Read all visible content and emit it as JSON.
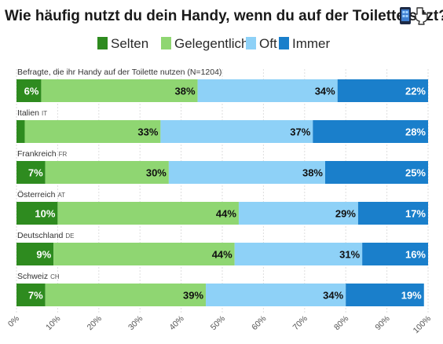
{
  "chart_data": {
    "type": "bar",
    "orientation": "horizontal",
    "stacked": true,
    "title": "Wie häufig nutzt du dein Handy, wenn du auf der Toilette sitzt?",
    "title_icons": [
      "smartphone-icon",
      "toilet-icon"
    ],
    "xlim": [
      0,
      100
    ],
    "x_ticks": [
      "0%",
      "10%",
      "20%",
      "30%",
      "40%",
      "50%",
      "60%",
      "70%",
      "80%",
      "90%",
      "100%"
    ],
    "grid": true,
    "legend": "top",
    "categories": [
      {
        "label": "Befragte, die ihr Handy auf der Toilette nutzen (N=1204)",
        "code": ""
      },
      {
        "label": "Italien",
        "code": "IT"
      },
      {
        "label": "Frankreich",
        "code": "FR"
      },
      {
        "label": "Österreich",
        "code": "AT"
      },
      {
        "label": "Deutschland",
        "code": "DE"
      },
      {
        "label": "Schweiz",
        "code": "CH"
      }
    ],
    "series": [
      {
        "name": "Selten",
        "color": "#2e8b1f",
        "text_color": "#ffffff",
        "values": [
          6,
          2,
          7,
          10,
          9,
          7
        ],
        "labels": [
          "6%",
          "",
          "7%",
          "10%",
          "9%",
          "7%"
        ]
      },
      {
        "name": "Gelegentlich",
        "color": "#8fd672",
        "text_color": "#111111",
        "values": [
          38,
          33,
          30,
          44,
          44,
          39
        ],
        "labels": [
          "38%",
          "33%",
          "30%",
          "44%",
          "44%",
          "39%"
        ]
      },
      {
        "name": "Oft",
        "color": "#8ed1f7",
        "text_color": "#111111",
        "values": [
          34,
          37,
          38,
          29,
          31,
          34
        ],
        "labels": [
          "34%",
          "37%",
          "38%",
          "29%",
          "31%",
          "34%"
        ]
      },
      {
        "name": "Immer",
        "color": "#1a7fcb",
        "text_color": "#ffffff",
        "values": [
          22,
          28,
          25,
          17,
          16,
          19
        ],
        "labels": [
          "22%",
          "28%",
          "25%",
          "17%",
          "16%",
          "19%"
        ]
      }
    ]
  }
}
